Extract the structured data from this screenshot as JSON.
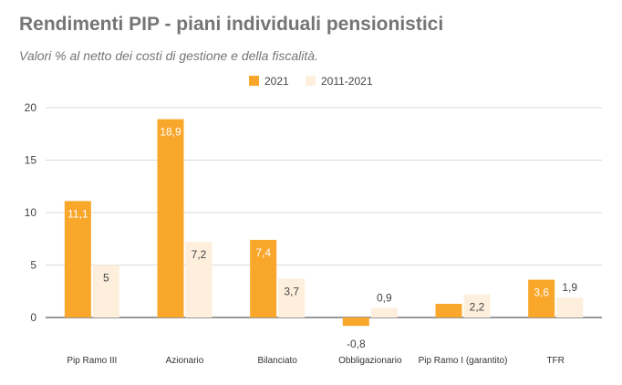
{
  "chart_data": {
    "type": "bar",
    "title": "Rendimenti PIP - piani individuali pensionistici",
    "subtitle": "Valori % al netto dei costi di gestione e della fiscalità.",
    "categories": [
      "Pip Ramo III",
      "Azionario",
      "Bilanciato",
      "Obbligazionario",
      "Pip Ramo I (garantito)",
      "TFR"
    ],
    "series": [
      {
        "name": "2021",
        "color": "#f9a72b",
        "values": [
          11.1,
          18.9,
          7.4,
          -0.8,
          1.3,
          3.6
        ],
        "labels": [
          "11,1",
          "18,9",
          "7,4",
          "-0,8",
          "",
          "3,6"
        ]
      },
      {
        "name": "2011-2021",
        "color": "#fdefdc",
        "values": [
          5,
          7.2,
          3.7,
          0.9,
          2.2,
          1.9
        ],
        "labels": [
          "5",
          "7,2",
          "3,7",
          "0,9",
          "2,2",
          "1,9"
        ]
      }
    ],
    "yticks": [
      "0",
      "5",
      "10",
      "15",
      "20"
    ],
    "ylim": [
      -1,
      20
    ],
    "xlabel": "",
    "ylabel": "",
    "grid": true,
    "legend_position": "top-center"
  }
}
